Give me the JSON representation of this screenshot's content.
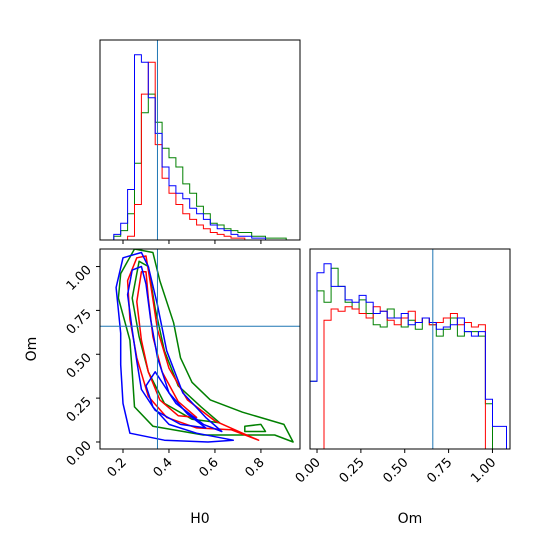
{
  "chart_data": {
    "type": "corner",
    "parameters": [
      "H0",
      "Om"
    ],
    "xlabel_H0": "H0",
    "xlabel_Om": "Om",
    "ylabel_Om": "Om",
    "truth": {
      "H0": 0.35,
      "Om": 0.66
    },
    "ranges": {
      "H0": [
        0.1,
        0.97
      ],
      "Om": [
        -0.04,
        1.1
      ]
    },
    "ticks": {
      "H0": [
        "0.2",
        "0.4",
        "0.6",
        "0.8"
      ],
      "Om": [
        "0.00",
        "0.25",
        "0.50",
        "0.75",
        "1.00"
      ]
    },
    "colors": {
      "green": "#008000",
      "red": "#ff0000",
      "blue": "#0000ff",
      "truth": "#1f77b4"
    },
    "series_colors": [
      "green",
      "red",
      "blue"
    ],
    "hist_h0": {
      "bin_edges": [
        0.1,
        0.13,
        0.16,
        0.19,
        0.22,
        0.25,
        0.28,
        0.31,
        0.34,
        0.37,
        0.4,
        0.43,
        0.46,
        0.49,
        0.52,
        0.55,
        0.58,
        0.61,
        0.64,
        0.67,
        0.7,
        0.73,
        0.76,
        0.79,
        0.82,
        0.85,
        0.88,
        0.91,
        0.94,
        0.97
      ],
      "green": [
        0,
        0,
        2,
        5,
        14,
        41,
        68,
        78,
        63,
        49,
        44,
        39,
        30,
        25,
        18,
        14,
        9,
        8,
        6,
        5,
        4,
        4,
        2,
        2,
        1,
        1,
        1,
        0,
        0
      ],
      "red": [
        0,
        0,
        0,
        0,
        2,
        19,
        78,
        95,
        51,
        33,
        25,
        19,
        14,
        11,
        8,
        6,
        4,
        3,
        2,
        1,
        1,
        0,
        0,
        0,
        0,
        0,
        0,
        0,
        0
      ],
      "blue": [
        0,
        0,
        3,
        9,
        27,
        99,
        95,
        76,
        57,
        39,
        29,
        25,
        22,
        17,
        14,
        11,
        8,
        6,
        5,
        3,
        2,
        2,
        1,
        1,
        0,
        0,
        0,
        0,
        0
      ]
    },
    "hist_om": {
      "bin_edges": [
        -0.04,
        0.0,
        0.04,
        0.08,
        0.12,
        0.16,
        0.2,
        0.24,
        0.28,
        0.32,
        0.36,
        0.4,
        0.44,
        0.48,
        0.52,
        0.56,
        0.6,
        0.64,
        0.68,
        0.72,
        0.76,
        0.8,
        0.84,
        0.88,
        0.92,
        0.96,
        1.0,
        1.04,
        1.08
      ],
      "green": [
        30,
        70,
        65,
        80,
        72,
        65,
        62,
        66,
        60,
        55,
        54,
        62,
        58,
        54,
        57,
        53,
        58,
        55,
        50,
        53,
        58,
        50,
        52,
        52,
        50,
        20,
        0,
        0
      ],
      "red": [
        0,
        0,
        57,
        62,
        61,
        63,
        62,
        60,
        58,
        63,
        61,
        57,
        55,
        58,
        61,
        56,
        58,
        55,
        56,
        58,
        60,
        55,
        56,
        54,
        55,
        0,
        0,
        0
      ],
      "blue": [
        30,
        78,
        82,
        72,
        72,
        66,
        65,
        68,
        65,
        60,
        61,
        58,
        58,
        60,
        55,
        56,
        58,
        56,
        53,
        54,
        55,
        58,
        52,
        50,
        52,
        22,
        10,
        10
      ]
    },
    "contours": [
      {
        "color": "green",
        "level": "outer",
        "points": [
          [
            0.25,
            1.1
          ],
          [
            0.19,
            0.96
          ],
          [
            0.18,
            0.82
          ],
          [
            0.23,
            0.58
          ],
          [
            0.24,
            0.4
          ],
          [
            0.25,
            0.2
          ],
          [
            0.33,
            0.09
          ],
          [
            0.55,
            0.04
          ],
          [
            0.86,
            0.04
          ],
          [
            0.94,
            0.0
          ],
          [
            0.9,
            0.1
          ],
          [
            0.72,
            0.17
          ],
          [
            0.58,
            0.24
          ],
          [
            0.5,
            0.34
          ],
          [
            0.45,
            0.48
          ],
          [
            0.42,
            0.68
          ],
          [
            0.36,
            0.92
          ],
          [
            0.33,
            1.08
          ]
        ]
      },
      {
        "color": "green",
        "level": "inner",
        "points": [
          [
            0.27,
            1.03
          ],
          [
            0.24,
            0.82
          ],
          [
            0.27,
            0.6
          ],
          [
            0.31,
            0.4
          ],
          [
            0.38,
            0.22
          ],
          [
            0.5,
            0.13
          ],
          [
            0.62,
            0.11
          ],
          [
            0.54,
            0.2
          ],
          [
            0.44,
            0.32
          ],
          [
            0.38,
            0.52
          ],
          [
            0.34,
            0.76
          ],
          [
            0.31,
            1.0
          ]
        ]
      },
      {
        "color": "green",
        "level": "small",
        "points": [
          [
            0.73,
            0.06
          ],
          [
            0.82,
            0.06
          ],
          [
            0.8,
            0.1
          ],
          [
            0.73,
            0.09
          ]
        ]
      },
      {
        "color": "red",
        "level": "outer",
        "points": [
          [
            0.26,
            1.05
          ],
          [
            0.22,
            0.92
          ],
          [
            0.23,
            0.7
          ],
          [
            0.26,
            0.48
          ],
          [
            0.31,
            0.26
          ],
          [
            0.39,
            0.14
          ],
          [
            0.52,
            0.08
          ],
          [
            0.67,
            0.07
          ],
          [
            0.79,
            0.01
          ],
          [
            0.72,
            0.05
          ],
          [
            0.6,
            0.12
          ],
          [
            0.48,
            0.24
          ],
          [
            0.4,
            0.42
          ],
          [
            0.35,
            0.64
          ],
          [
            0.32,
            0.9
          ],
          [
            0.3,
            1.06
          ]
        ]
      },
      {
        "color": "red",
        "level": "inner",
        "points": [
          [
            0.28,
            0.97
          ],
          [
            0.26,
            0.8
          ],
          [
            0.28,
            0.58
          ],
          [
            0.31,
            0.4
          ],
          [
            0.36,
            0.24
          ],
          [
            0.44,
            0.15
          ],
          [
            0.52,
            0.14
          ],
          [
            0.44,
            0.23
          ],
          [
            0.37,
            0.4
          ],
          [
            0.33,
            0.6
          ],
          [
            0.31,
            0.82
          ],
          [
            0.3,
            0.97
          ]
        ]
      },
      {
        "color": "blue",
        "level": "outer",
        "points": [
          [
            0.2,
            1.05
          ],
          [
            0.17,
            0.88
          ],
          [
            0.19,
            0.62
          ],
          [
            0.19,
            0.44
          ],
          [
            0.2,
            0.22
          ],
          [
            0.23,
            0.05
          ],
          [
            0.38,
            0.01
          ],
          [
            0.57,
            0.0
          ],
          [
            0.68,
            0.01
          ],
          [
            0.52,
            0.05
          ],
          [
            0.4,
            0.1
          ],
          [
            0.33,
            0.2
          ],
          [
            0.3,
            0.32
          ],
          [
            0.34,
            0.4
          ],
          [
            0.43,
            0.22
          ],
          [
            0.55,
            0.1
          ],
          [
            0.63,
            0.06
          ],
          [
            0.56,
            0.14
          ],
          [
            0.46,
            0.28
          ],
          [
            0.39,
            0.52
          ],
          [
            0.35,
            0.78
          ],
          [
            0.31,
            1.0
          ],
          [
            0.28,
            1.08
          ]
        ]
      },
      {
        "color": "blue",
        "level": "inner",
        "points": [
          [
            0.24,
            0.98
          ],
          [
            0.22,
            0.84
          ],
          [
            0.24,
            0.64
          ],
          [
            0.26,
            0.46
          ],
          [
            0.28,
            0.3
          ],
          [
            0.34,
            0.18
          ],
          [
            0.45,
            0.1
          ],
          [
            0.56,
            0.08
          ],
          [
            0.48,
            0.16
          ],
          [
            0.4,
            0.28
          ],
          [
            0.35,
            0.48
          ],
          [
            0.32,
            0.7
          ],
          [
            0.3,
            0.9
          ],
          [
            0.28,
            1.0
          ]
        ]
      }
    ]
  }
}
